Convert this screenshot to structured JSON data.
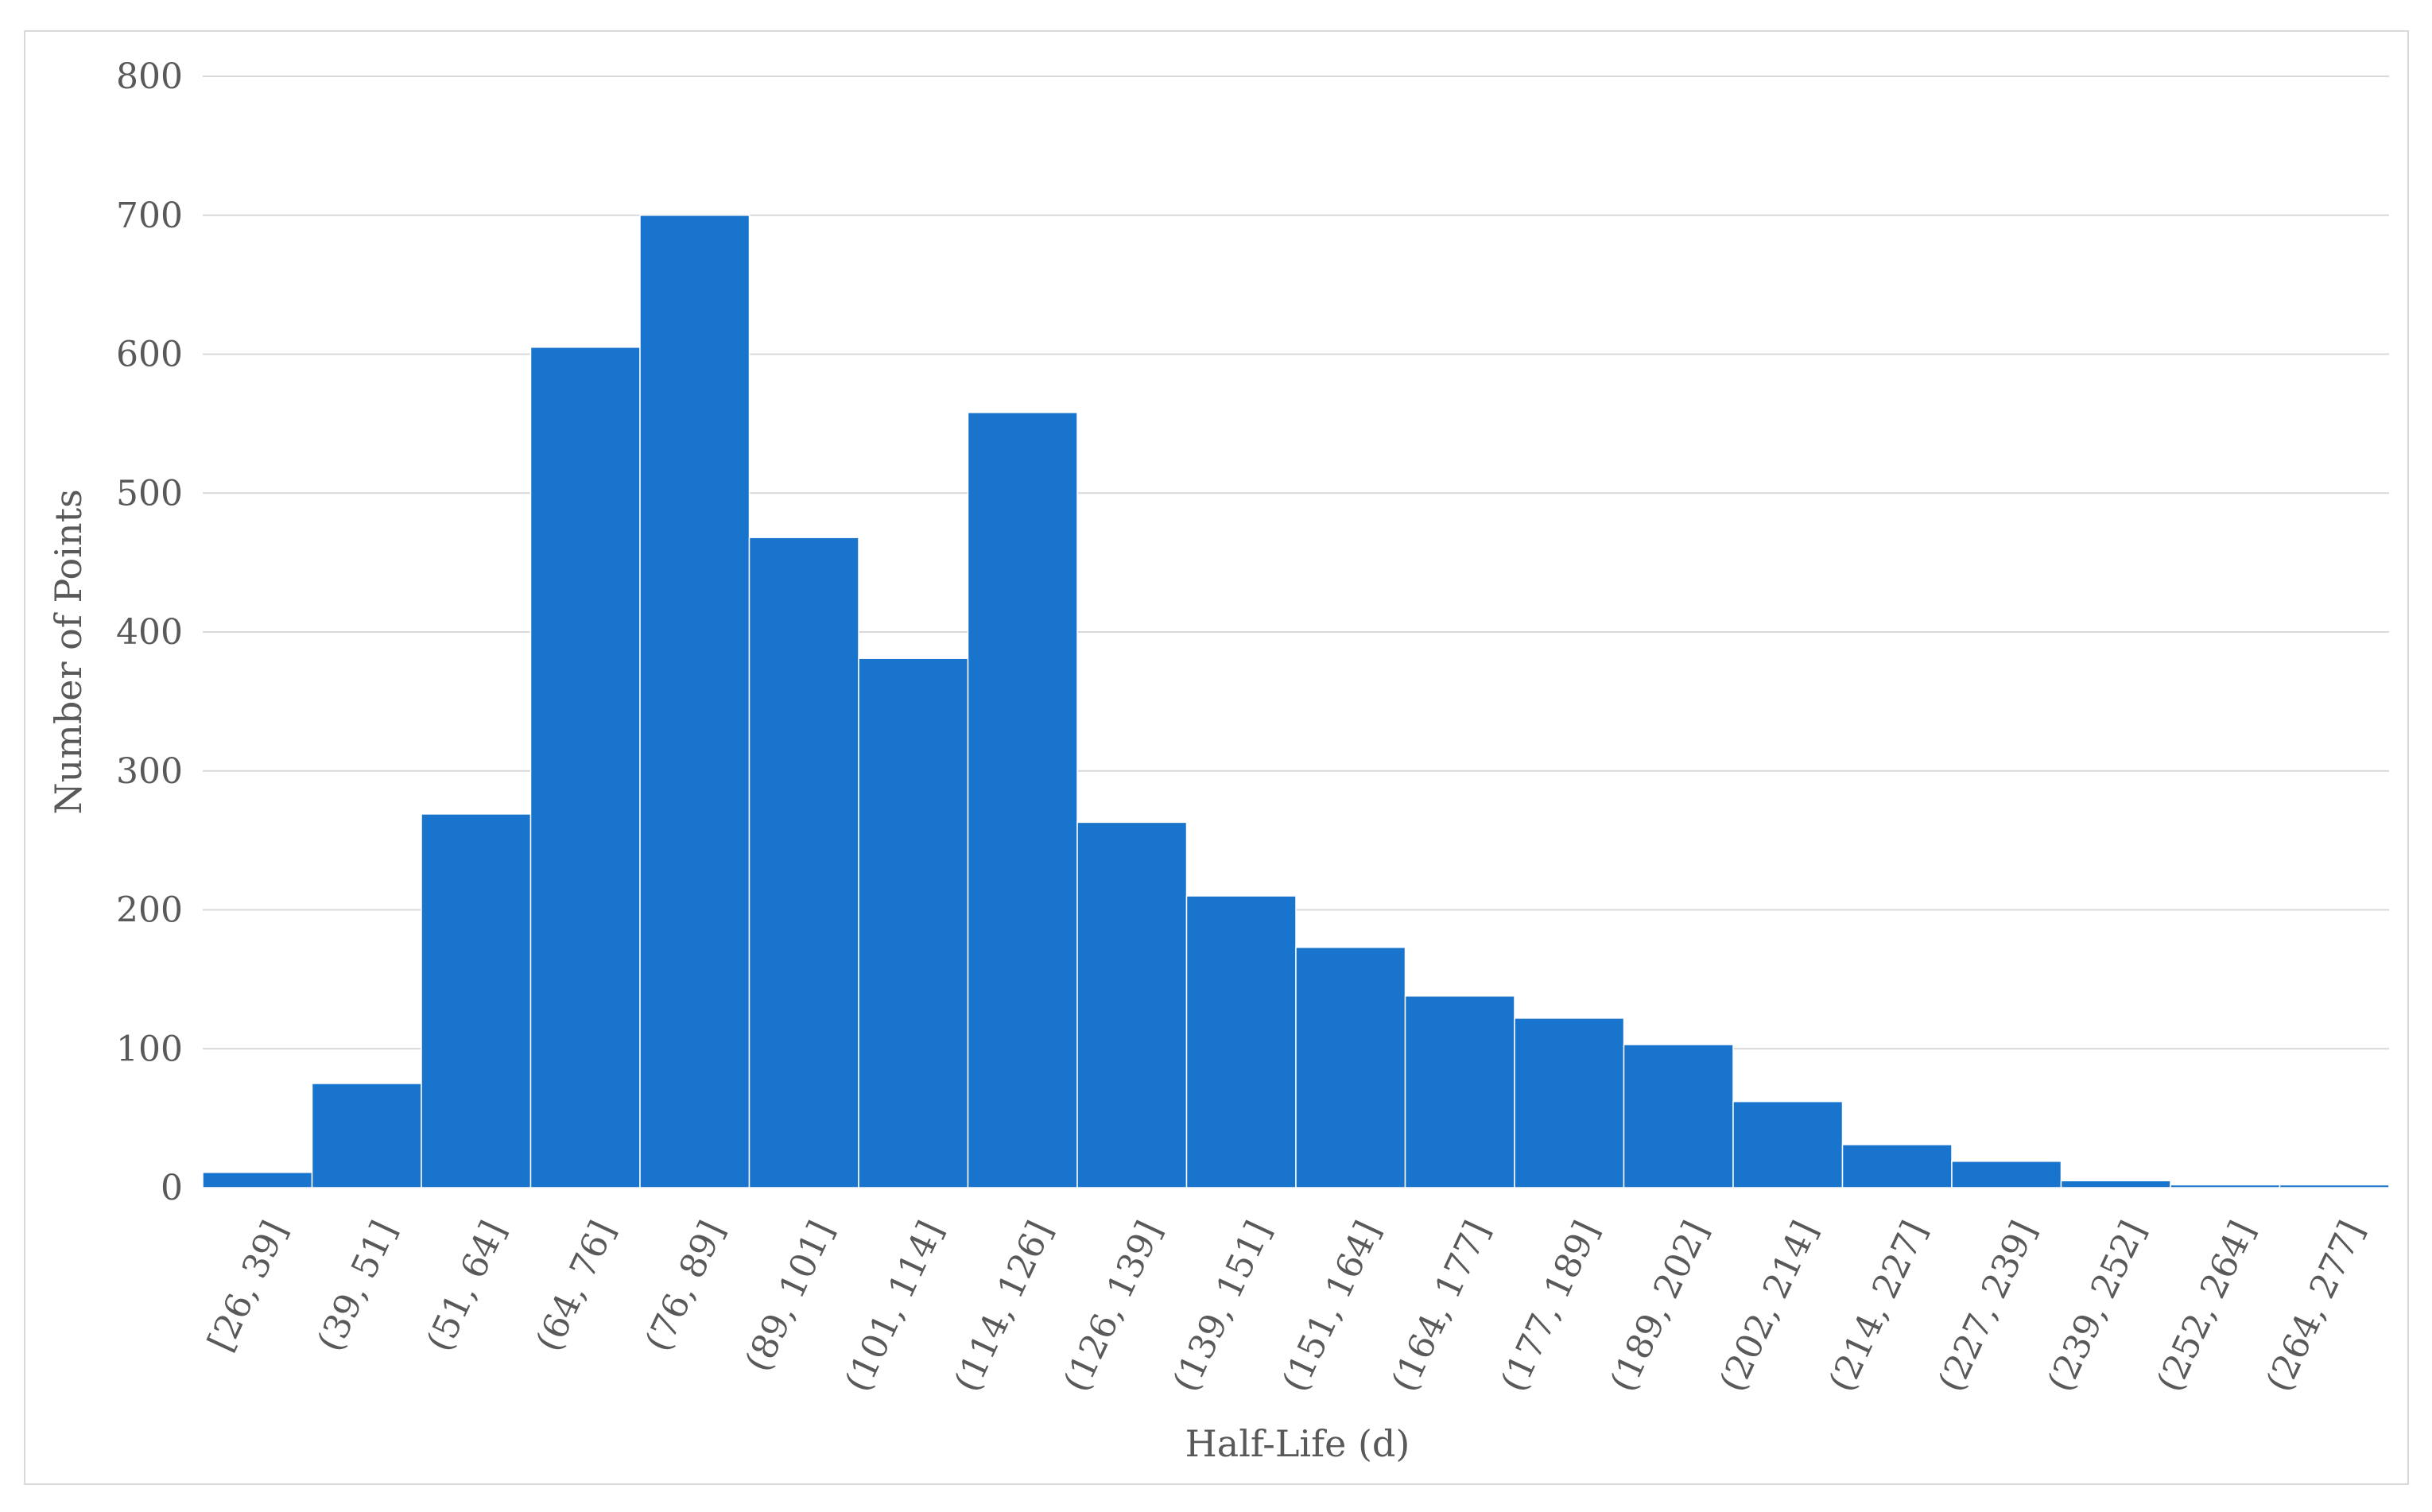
{
  "chart_data": {
    "type": "bar",
    "title": "",
    "xlabel": "Half-Life (d)",
    "ylabel": "Number of Points",
    "ylim": [
      0,
      800
    ],
    "yticks": [
      0,
      100,
      200,
      300,
      400,
      500,
      600,
      700,
      800
    ],
    "grid": true,
    "legend": "none",
    "bar_color": "#1874CD",
    "bar_edge_color": "#ffffff",
    "categories": [
      "[26, 39]",
      "(39, 51]",
      "(51, 64]",
      "(64, 76]",
      "(76, 89]",
      "(89, 101]",
      "(101, 114]",
      "(114, 126]",
      "(126, 139]",
      "(139, 151]",
      "(151, 164]",
      "(164, 177]",
      "(177, 189]",
      "(189, 202]",
      "(202, 214]",
      "(214, 227]",
      "(227, 239]",
      "(239, 252]",
      "(252, 264]",
      "(264, 277]"
    ],
    "values": [
      11,
      75,
      269,
      605,
      700,
      468,
      381,
      558,
      263,
      210,
      173,
      138,
      122,
      103,
      62,
      31,
      19,
      5,
      2,
      2
    ]
  },
  "colors": {
    "grid": "#d9d9d9",
    "text": "#595959",
    "frame": "#d9d9d9"
  }
}
